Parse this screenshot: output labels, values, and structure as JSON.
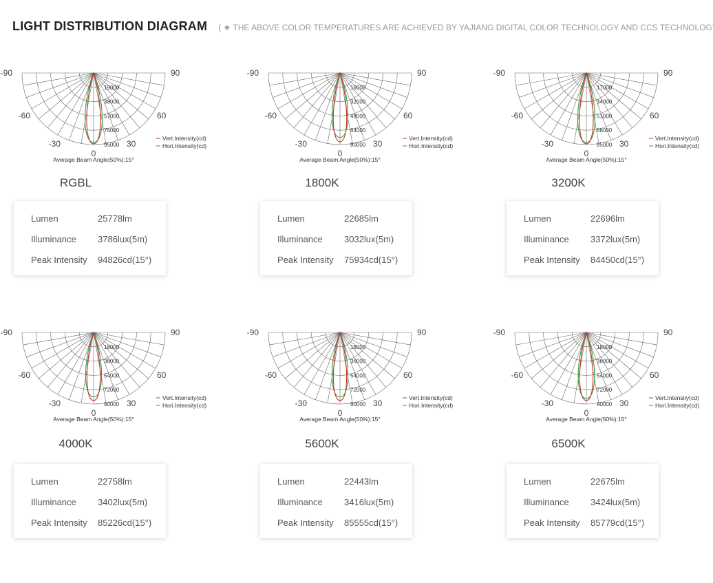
{
  "header": {
    "title": "LIGHT DISTRIBUTION DIAGRAM",
    "note": "( ★ THE ABOVE COLOR TEMPERATURES ARE ACHIEVED BY YAJIANG DIGITAL COLOR TECHNOLOGY AND CCS TECHNOLOGY)"
  },
  "labels": {
    "lumen": "Lumen",
    "illuminance": "Illuminance",
    "peak": "Peak Intensity",
    "vert": "Vert.Intensity(cd)",
    "hori": "Hori.Intensity(cd)",
    "beam": "Average Beam Angle(50%):15°"
  },
  "angles": [
    "-90",
    "-60",
    "-30",
    "0",
    "30",
    "60",
    "90"
  ],
  "colors": {
    "vertical": "#c0392b",
    "horizontal": "#3a9a3a",
    "grid": "#666666"
  },
  "panels": [
    {
      "model": "RGBL",
      "rings": [
        "19000",
        "38000",
        "57000",
        "76000",
        "95000"
      ],
      "lumen": "25778lm",
      "illuminance": "3786lux(5m)",
      "peak": "94826cd(15°)",
      "vert_scale": 0.99,
      "hori_scale": 0.97
    },
    {
      "model": "1800K",
      "rings": [
        "16000",
        "32000",
        "48000",
        "64000",
        "80000"
      ],
      "lumen": "22685lm",
      "illuminance": "3032lux(5m)",
      "peak": "75934cd(15°)",
      "vert_scale": 0.96,
      "hori_scale": 0.9
    },
    {
      "model": "3200K",
      "rings": [
        "17000",
        "34000",
        "51000",
        "68000",
        "85000"
      ],
      "lumen": "22696lm",
      "illuminance": "3372lux(5m)",
      "peak": "84450cd(15°)",
      "vert_scale": 0.99,
      "hori_scale": 0.97
    },
    {
      "model": "4000K",
      "rings": [
        "18000",
        "36000",
        "54000",
        "72000",
        "90000"
      ],
      "lumen": "22758lm",
      "illuminance": "3402lux(5m)",
      "peak": "85226cd(15°)",
      "vert_scale": 0.95,
      "hori_scale": 0.9
    },
    {
      "model": "5600K",
      "rings": [
        "18000",
        "36000",
        "54000",
        "72000",
        "90000"
      ],
      "lumen": "22443lm",
      "illuminance": "3416lux(5m)",
      "peak": "85555cd(15°)",
      "vert_scale": 0.95,
      "hori_scale": 0.9
    },
    {
      "model": "6500K",
      "rings": [
        "18000",
        "36000",
        "54000",
        "72000",
        "90000"
      ],
      "lumen": "22675lm",
      "illuminance": "3424lux(5m)",
      "peak": "85779cd(15°)",
      "vert_scale": 0.95,
      "hori_scale": 0.92
    }
  ]
}
